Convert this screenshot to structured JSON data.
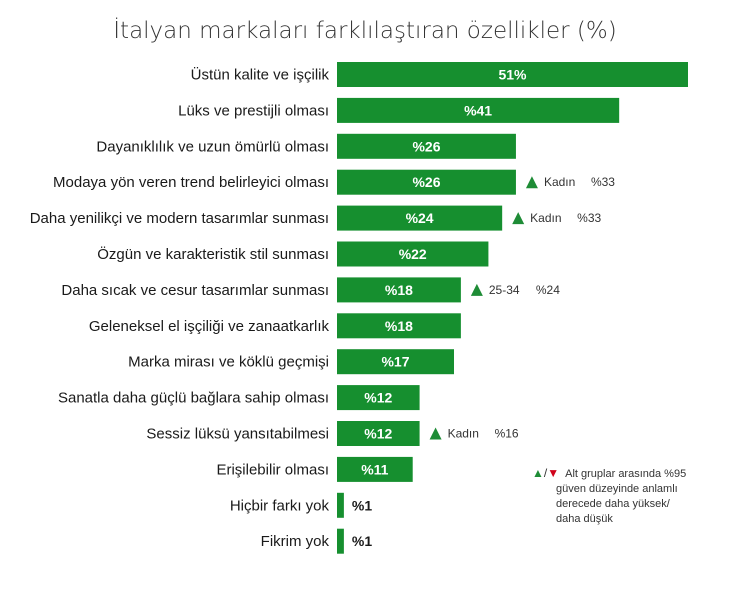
{
  "chart_data": {
    "type": "bar",
    "orientation": "horizontal",
    "title": "İtalyan markaları farklılaştıran özellikler (%)",
    "bar_color": "#168f2f",
    "categories": [
      "Üstün kalite ve işçilik",
      "Lüks ve prestijli olması",
      "Dayanıklılık ve uzun ömürlü olması",
      "Modaya yön veren trend belirleyici olması",
      "Daha yenilikçi ve modern tasarımlar sunması",
      "Özgün ve karakteristik stil sunması",
      "Daha sıcak ve cesur tasarımlar sunması",
      "Geleneksel el işçiliği ve zanaatkarlık",
      "Marka mirası ve köklü geçmişi",
      "Sanatla daha güçlü bağlara sahip olması",
      "Sessiz lüksü yansıtabilmesi",
      "Erişilebilir olması",
      "Hiçbir farkı yok",
      "Fikrim yok"
    ],
    "values": [
      51,
      41,
      26,
      26,
      24,
      22,
      18,
      18,
      17,
      12,
      12,
      11,
      1,
      1
    ],
    "value_labels": [
      "51%",
      "%41",
      "%26",
      "%26",
      "%24",
      "%22",
      "%18",
      "%18",
      "%17",
      "%12",
      "%12",
      "%11",
      "%1",
      "%1"
    ],
    "annotations": [
      {
        "index": 3,
        "direction": "up",
        "group": "Kadın",
        "value_label": "%33"
      },
      {
        "index": 4,
        "direction": "up",
        "group": "Kadın",
        "value_label": "%33"
      },
      {
        "index": 6,
        "direction": "up",
        "group": "25-34",
        "value_label": "%24"
      },
      {
        "index": 10,
        "direction": "up",
        "group": "Kadın",
        "value_label": "%16"
      }
    ],
    "legend": {
      "up_symbol": "▲",
      "separator": "/",
      "down_symbol": "▼",
      "line1": "Alt gruplar arasında %95",
      "line2": "güven düzeyinde anlamlı",
      "line3": "derecede daha yüksek/",
      "line4": "daha düşük",
      "up_color": "#1e8c36",
      "down_color": "#d0021b"
    },
    "xlim": [
      0,
      51
    ]
  }
}
